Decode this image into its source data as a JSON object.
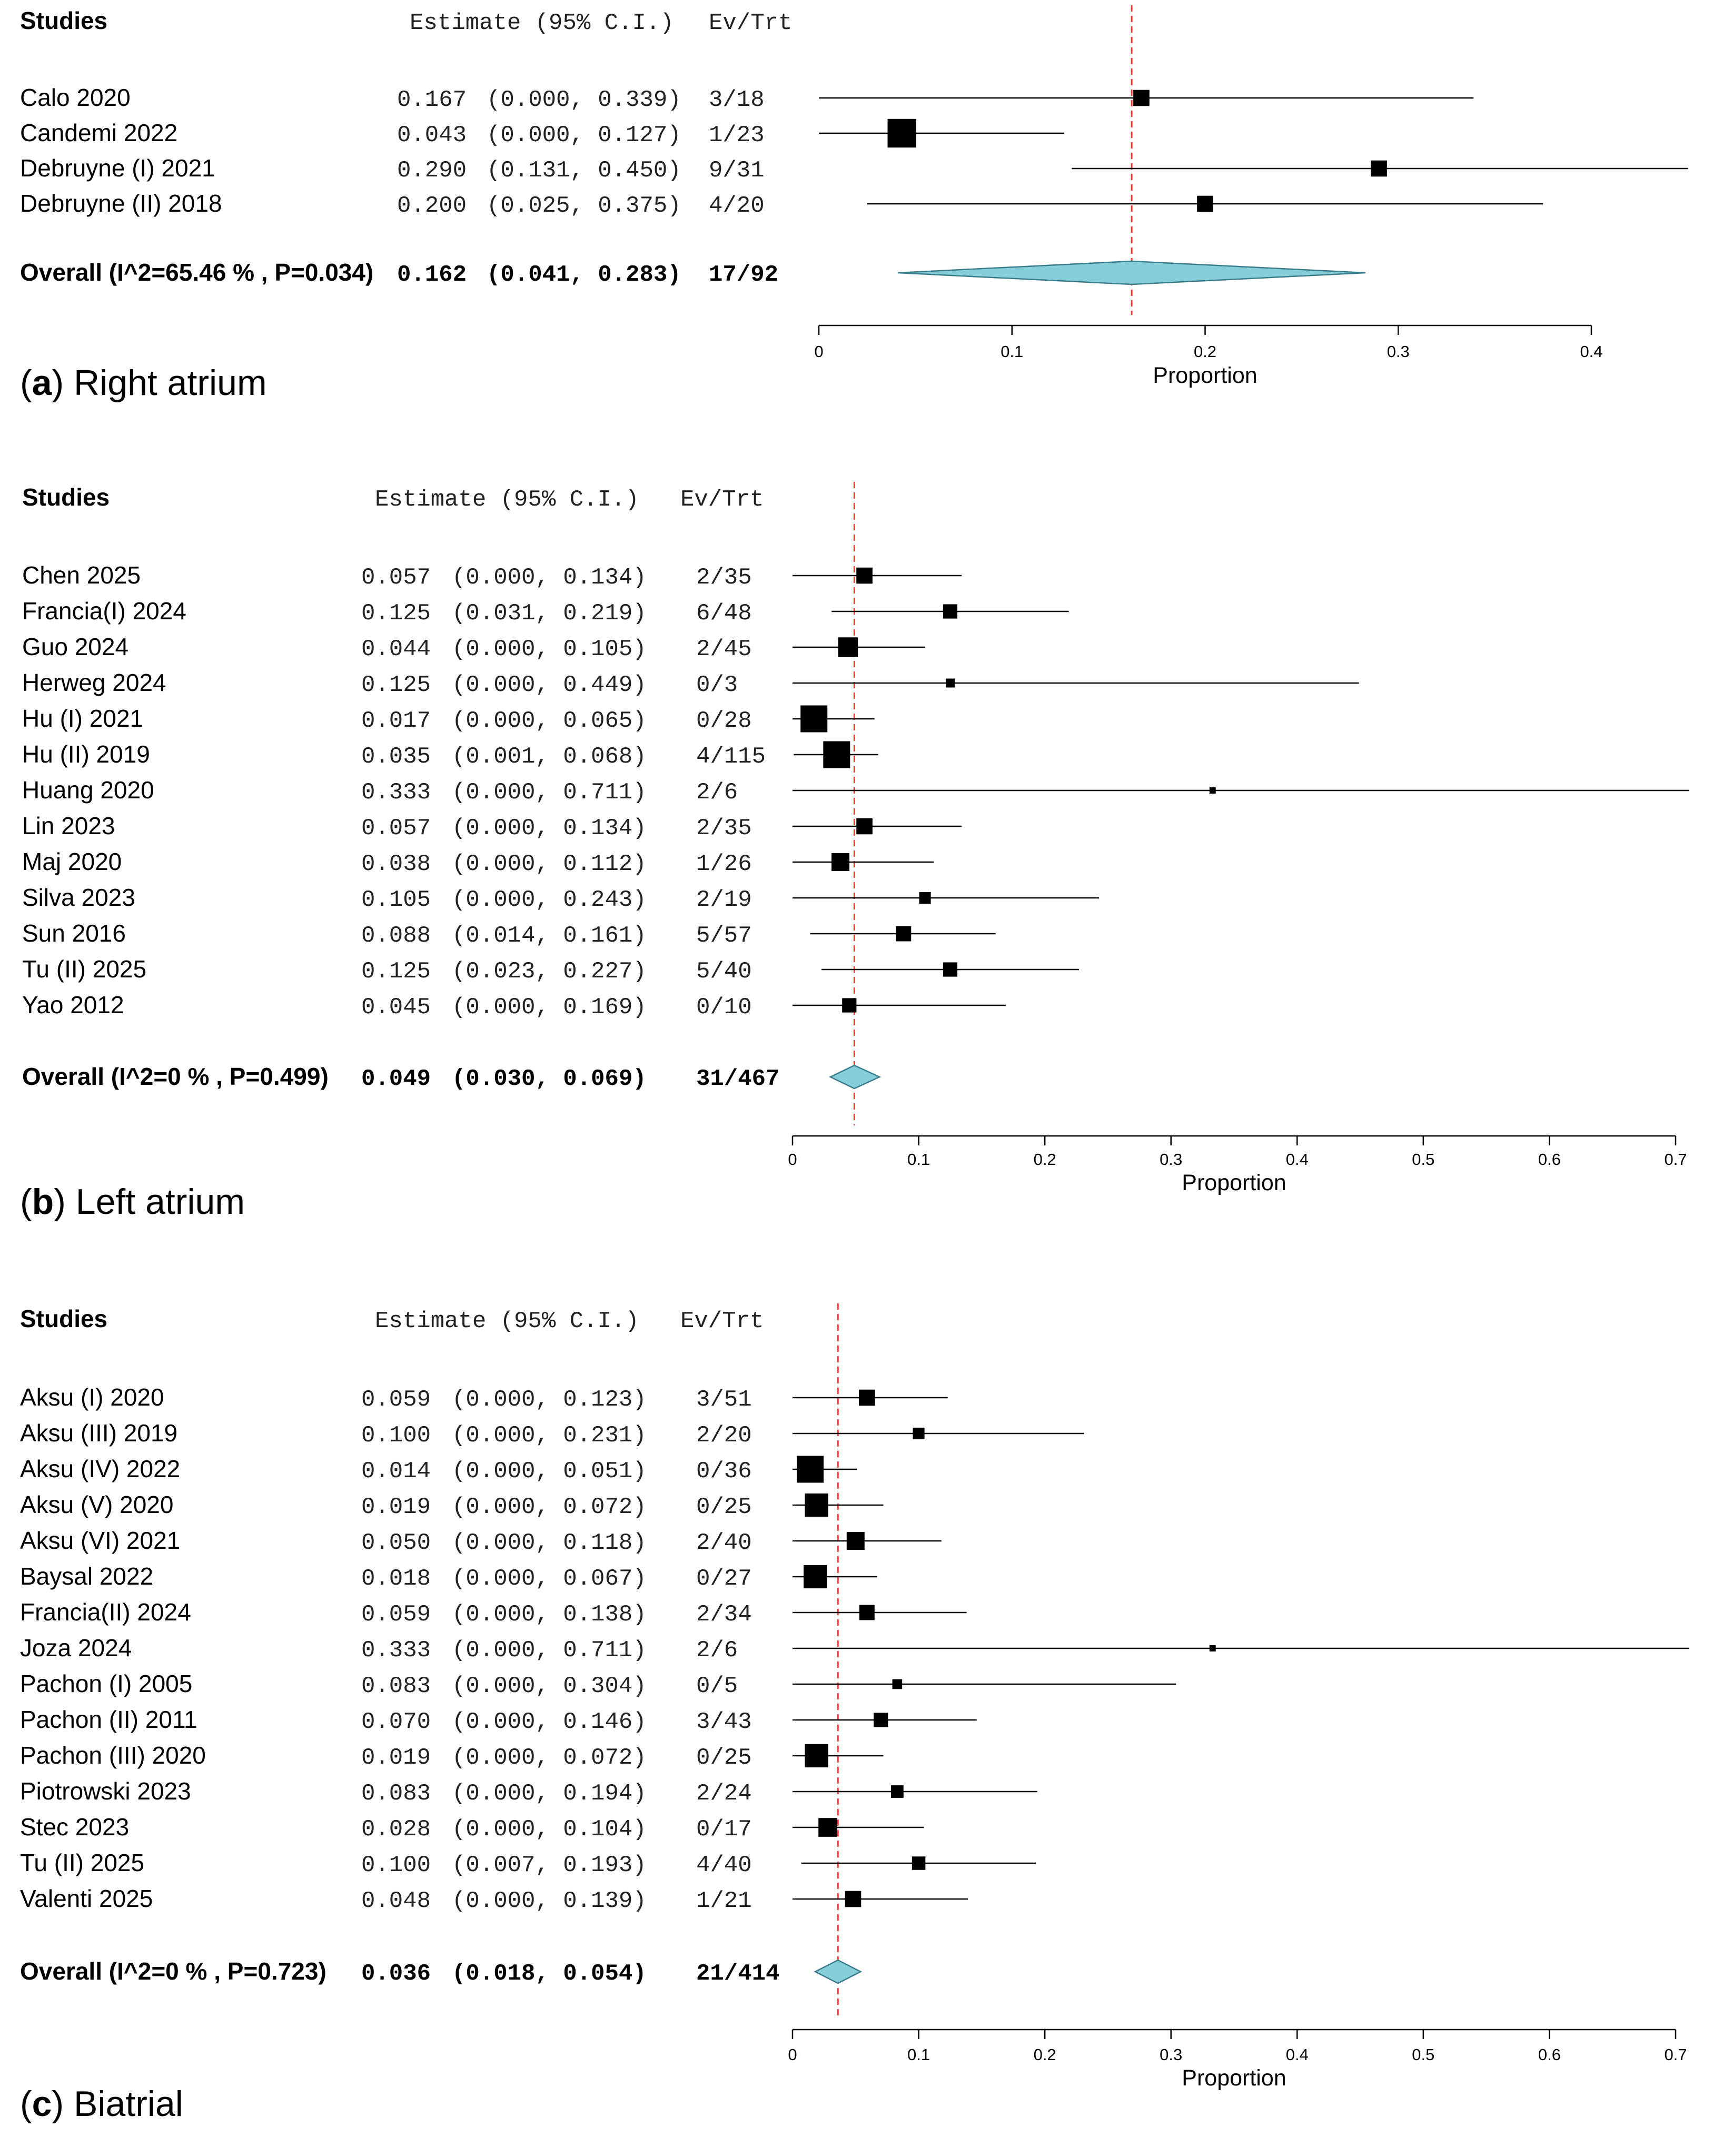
{
  "chart_data": [
    {
      "type": "forest",
      "panel_letter": "a",
      "panel_title": "Right atrium",
      "header": {
        "studies": "Studies",
        "estimate": "Estimate (95% C.I.)",
        "events": "Ev/Trt"
      },
      "xlabel": "Proportion",
      "xlim": [
        0,
        0.4
      ],
      "ticks": [
        "0",
        "0.1",
        "0.2",
        "0.3",
        "0.4"
      ],
      "studies": [
        {
          "name": "Calo 2020",
          "est": 0.167,
          "lo": 0.0,
          "hi": 0.339,
          "est_text": "0.167",
          "ci_text": "(0.000, 0.339)",
          "events": "3/18",
          "weight": 0.9
        },
        {
          "name": "Candemi 2022",
          "est": 0.043,
          "lo": 0.0,
          "hi": 0.127,
          "est_text": "0.043",
          "ci_text": "(0.000, 0.127)",
          "events": "1/23",
          "weight": 1.6
        },
        {
          "name": "Debruyne (I) 2021",
          "est": 0.29,
          "lo": 0.131,
          "hi": 0.45,
          "est_text": "0.290",
          "ci_text": "(0.131, 0.450)",
          "events": "9/31",
          "weight": 0.9
        },
        {
          "name": "Debruyne (II) 2018",
          "est": 0.2,
          "lo": 0.025,
          "hi": 0.375,
          "est_text": "0.200",
          "ci_text": "(0.025, 0.375)",
          "events": "4/20",
          "weight": 0.9
        }
      ],
      "overall": {
        "label": "Overall (I^2=65.46 % , P=0.034)",
        "est": 0.162,
        "lo": 0.041,
        "hi": 0.283,
        "est_text": "0.162",
        "ci_text": "(0.041, 0.283)",
        "events": "17/92"
      }
    },
    {
      "type": "forest",
      "panel_letter": "b",
      "panel_title": "Left atrium",
      "header": {
        "studies": "Studies",
        "estimate": "Estimate (95% C.I.)",
        "events": "Ev/Trt"
      },
      "xlabel": "Proportion",
      "xlim": [
        0,
        0.7
      ],
      "ticks": [
        "0",
        "0.1",
        "0.2",
        "0.3",
        "0.4",
        "0.5",
        "0.6",
        "0.7"
      ],
      "studies": [
        {
          "name": "Chen 2025",
          "est": 0.057,
          "lo": 0.0,
          "hi": 0.134,
          "est_text": "0.057",
          "ci_text": "(0.000, 0.134)",
          "events": "2/35",
          "weight": 0.9
        },
        {
          "name": "Francia(I) 2024",
          "est": 0.125,
          "lo": 0.031,
          "hi": 0.219,
          "est_text": "0.125",
          "ci_text": "(0.031, 0.219)",
          "events": "6/48",
          "weight": 0.8
        },
        {
          "name": "Guo 2024",
          "est": 0.044,
          "lo": 0.0,
          "hi": 0.105,
          "est_text": "0.044",
          "ci_text": "(0.000, 0.105)",
          "events": "2/45",
          "weight": 1.1
        },
        {
          "name": "Herweg 2024",
          "est": 0.125,
          "lo": 0.0,
          "hi": 0.449,
          "est_text": "0.125",
          "ci_text": "(0.000, 0.449)",
          "events": "0/3",
          "weight": 0.5
        },
        {
          "name": "Hu (I) 2021",
          "est": 0.017,
          "lo": 0.0,
          "hi": 0.065,
          "est_text": "0.017",
          "ci_text": "(0.000, 0.065)",
          "events": "0/28",
          "weight": 1.5
        },
        {
          "name": "Hu (II) 2019",
          "est": 0.035,
          "lo": 0.001,
          "hi": 0.068,
          "est_text": "0.035",
          "ci_text": "(0.001, 0.068)",
          "events": "4/115",
          "weight": 1.5
        },
        {
          "name": "Huang 2020",
          "est": 0.333,
          "lo": 0.0,
          "hi": 0.711,
          "est_text": "0.333",
          "ci_text": "(0.000, 0.711)",
          "events": "2/6",
          "weight": 0.35
        },
        {
          "name": "Lin 2023",
          "est": 0.057,
          "lo": 0.0,
          "hi": 0.134,
          "est_text": "0.057",
          "ci_text": "(0.000, 0.134)",
          "events": "2/35",
          "weight": 0.9
        },
        {
          "name": "Maj 2020",
          "est": 0.038,
          "lo": 0.0,
          "hi": 0.112,
          "est_text": "0.038",
          "ci_text": "(0.000, 0.112)",
          "events": "1/26",
          "weight": 1.0
        },
        {
          "name": "Silva 2023",
          "est": 0.105,
          "lo": 0.0,
          "hi": 0.243,
          "est_text": "0.105",
          "ci_text": "(0.000, 0.243)",
          "events": "2/19",
          "weight": 0.65
        },
        {
          "name": "Sun 2016",
          "est": 0.088,
          "lo": 0.014,
          "hi": 0.161,
          "est_text": "0.088",
          "ci_text": "(0.014, 0.161)",
          "events": "5/57",
          "weight": 0.85
        },
        {
          "name": "Tu (II) 2025",
          "est": 0.125,
          "lo": 0.023,
          "hi": 0.227,
          "est_text": "0.125",
          "ci_text": "(0.023, 0.227)",
          "events": "5/40",
          "weight": 0.8
        },
        {
          "name": "Yao 2012",
          "est": 0.045,
          "lo": 0.0,
          "hi": 0.169,
          "est_text": "0.045",
          "ci_text": "(0.000, 0.169)",
          "events": "0/10",
          "weight": 0.8
        }
      ],
      "overall": {
        "label": "Overall (I^2=0 % , P=0.499)",
        "est": 0.049,
        "lo": 0.03,
        "hi": 0.069,
        "est_text": "0.049",
        "ci_text": "(0.030, 0.069)",
        "events": "31/467"
      }
    },
    {
      "type": "forest",
      "panel_letter": "c",
      "panel_title": "Biatrial",
      "header": {
        "studies": "Studies",
        "estimate": "Estimate (95% C.I.)",
        "events": "Ev/Trt"
      },
      "xlabel": "Proportion",
      "xlim": [
        0,
        0.7
      ],
      "ticks": [
        "0",
        "0.1",
        "0.2",
        "0.3",
        "0.4",
        "0.5",
        "0.6",
        "0.7"
      ],
      "studies": [
        {
          "name": "Aksu (I) 2020",
          "est": 0.059,
          "lo": 0.0,
          "hi": 0.123,
          "est_text": "0.059",
          "ci_text": "(0.000, 0.123)",
          "events": "3/51",
          "weight": 0.9
        },
        {
          "name": "Aksu (III) 2019",
          "est": 0.1,
          "lo": 0.0,
          "hi": 0.231,
          "est_text": "0.100",
          "ci_text": "(0.000, 0.231)",
          "events": "2/20",
          "weight": 0.65
        },
        {
          "name": "Aksu (IV) 2022",
          "est": 0.014,
          "lo": 0.0,
          "hi": 0.051,
          "est_text": "0.014",
          "ci_text": "(0.000, 0.051)",
          "events": "0/36",
          "weight": 1.5
        },
        {
          "name": "Aksu (V) 2020",
          "est": 0.019,
          "lo": 0.0,
          "hi": 0.072,
          "est_text": "0.019",
          "ci_text": "(0.000, 0.072)",
          "events": "0/25",
          "weight": 1.3
        },
        {
          "name": "Aksu (VI) 2021",
          "est": 0.05,
          "lo": 0.0,
          "hi": 0.118,
          "est_text": "0.050",
          "ci_text": "(0.000, 0.118)",
          "events": "2/40",
          "weight": 1.0
        },
        {
          "name": "Baysal 2022",
          "est": 0.018,
          "lo": 0.0,
          "hi": 0.067,
          "est_text": "0.018",
          "ci_text": "(0.000, 0.067)",
          "events": "0/27",
          "weight": 1.3
        },
        {
          "name": "Francia(II) 2024",
          "est": 0.059,
          "lo": 0.0,
          "hi": 0.138,
          "est_text": "0.059",
          "ci_text": "(0.000, 0.138)",
          "events": "2/34",
          "weight": 0.85
        },
        {
          "name": "Joza 2024",
          "est": 0.333,
          "lo": 0.0,
          "hi": 0.711,
          "est_text": "0.333",
          "ci_text": "(0.000, 0.711)",
          "events": "2/6",
          "weight": 0.35
        },
        {
          "name": "Pachon (I) 2005",
          "est": 0.083,
          "lo": 0.0,
          "hi": 0.304,
          "est_text": "0.083",
          "ci_text": "(0.000, 0.304)",
          "events": "0/5",
          "weight": 0.55
        },
        {
          "name": "Pachon (II) 2011",
          "est": 0.07,
          "lo": 0.0,
          "hi": 0.146,
          "est_text": "0.070",
          "ci_text": "(0.000, 0.146)",
          "events": "3/43",
          "weight": 0.8
        },
        {
          "name": "Pachon (III) 2020",
          "est": 0.019,
          "lo": 0.0,
          "hi": 0.072,
          "est_text": "0.019",
          "ci_text": "(0.000, 0.072)",
          "events": "0/25",
          "weight": 1.3
        },
        {
          "name": "Piotrowski 2023",
          "est": 0.083,
          "lo": 0.0,
          "hi": 0.194,
          "est_text": "0.083",
          "ci_text": "(0.000, 0.194)",
          "events": "2/24",
          "weight": 0.7
        },
        {
          "name": "Stec 2023",
          "est": 0.028,
          "lo": 0.0,
          "hi": 0.104,
          "est_text": "0.028",
          "ci_text": "(0.000, 0.104)",
          "events": "0/17",
          "weight": 1.05
        },
        {
          "name": "Tu (II) 2025",
          "est": 0.1,
          "lo": 0.007,
          "hi": 0.193,
          "est_text": "0.100",
          "ci_text": "(0.007, 0.193)",
          "events": "4/40",
          "weight": 0.75
        },
        {
          "name": "Valenti 2025",
          "est": 0.048,
          "lo": 0.0,
          "hi": 0.139,
          "est_text": "0.048",
          "ci_text": "(0.000, 0.139)",
          "events": "1/21",
          "weight": 0.9
        }
      ],
      "overall": {
        "label": "Overall (I^2=0 % , P=0.723)",
        "est": 0.036,
        "lo": 0.018,
        "hi": 0.054,
        "est_text": "0.036",
        "ci_text": "(0.018, 0.054)",
        "events": "21/414"
      }
    }
  ],
  "colors": {
    "diamond_fill": "#87CEDB",
    "diamond_stroke": "#3a7d8a",
    "ref_line": "#e8392c",
    "marker": "#000000"
  }
}
